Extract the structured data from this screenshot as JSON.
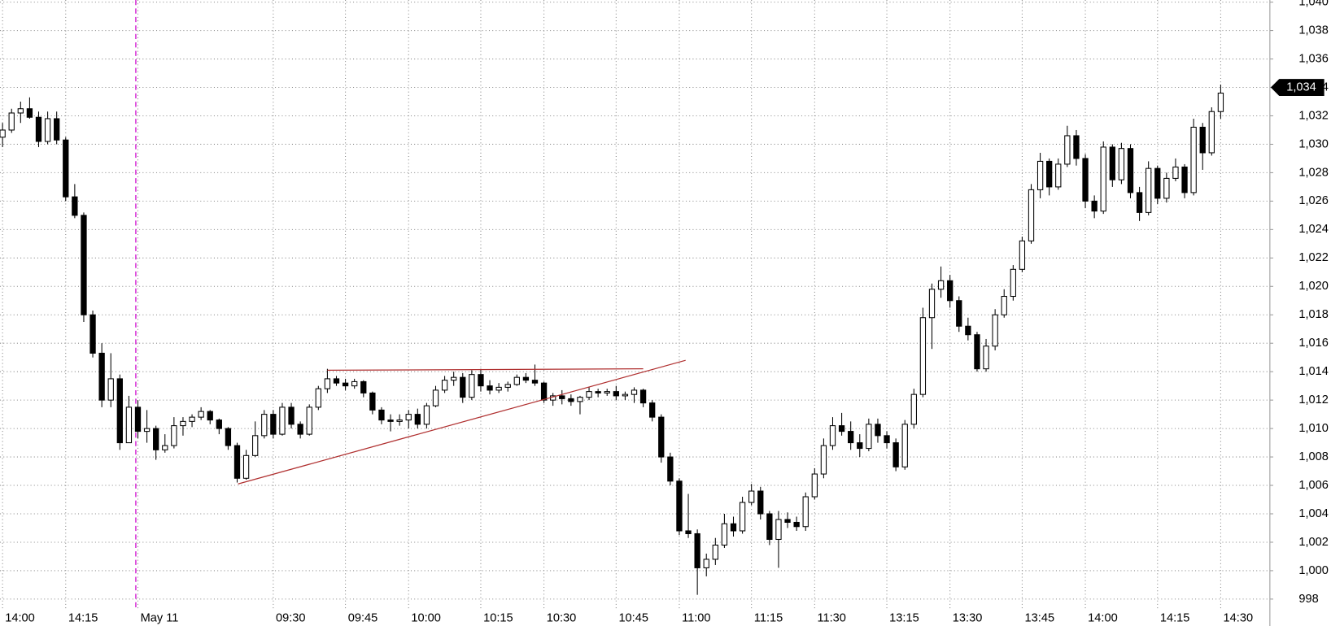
{
  "chart_data": {
    "type": "candlestick",
    "categories": [
      "14:00",
      null,
      null,
      null,
      null,
      null,
      null,
      "14:15",
      null,
      null,
      null,
      null,
      null,
      null,
      null,
      "May 11",
      null,
      null,
      null,
      null,
      null,
      null,
      null,
      null,
      null,
      null,
      null,
      null,
      null,
      null,
      "09:30",
      null,
      null,
      null,
      null,
      null,
      null,
      null,
      "09:45",
      null,
      null,
      null,
      null,
      null,
      null,
      "10:00",
      null,
      null,
      null,
      null,
      null,
      null,
      null,
      "10:15",
      null,
      null,
      null,
      null,
      null,
      null,
      "10:30",
      null,
      null,
      null,
      null,
      null,
      null,
      null,
      "10:45",
      null,
      null,
      null,
      null,
      null,
      null,
      "11:00",
      null,
      null,
      null,
      null,
      null,
      null,
      null,
      "11:15",
      null,
      null,
      null,
      null,
      null,
      null,
      "11:30",
      null,
      null,
      null,
      null,
      null,
      null,
      null,
      "13:15",
      null,
      null,
      null,
      null,
      null,
      null,
      "13:30",
      null,
      null,
      null,
      null,
      null,
      null,
      null,
      "13:45",
      null,
      null,
      null,
      null,
      null,
      null,
      "14:00",
      null,
      null,
      null,
      null,
      null,
      null,
      null,
      "14:15",
      null,
      null,
      null,
      null,
      null,
      null,
      "14:30"
    ],
    "open": [
      1030.5,
      1031,
      1032.2,
      1032.5,
      1031.9,
      1030.2,
      1031.8,
      1030.3,
      1026.3,
      1025,
      1018,
      1015.3,
      1012,
      1013.5,
      1009,
      1011.5,
      1009.8,
      1010,
      1008.5,
      1008.8,
      1010.2,
      1010.5,
      1010.8,
      1011.2,
      1010.6,
      1010,
      1008.8,
      1006.5,
      1008.1,
      1009.5,
      1011,
      1009.6,
      1011.5,
      1010.3,
      1009.6,
      1011.5,
      1012.8,
      1013.5,
      1013.2,
      1013,
      1013.3,
      1012.5,
      1011.3,
      1010.6,
      1010.5,
      1010.6,
      1011,
      1010.3,
      1011.6,
      1012.7,
      1013.4,
      1013.6,
      1012.2,
      1013.8,
      1013,
      1012.7,
      1012.9,
      1013.1,
      1013.6,
      1013.4,
      1013.2,
      1012,
      1012.3,
      1012.1,
      1011.9,
      1012.2,
      1012.6,
      1012.5,
      1012.6,
      1012.3,
      1012.4,
      1012.7,
      1011.8,
      1010.8,
      1008,
      1006.3,
      1002.8,
      1002.6,
      1000.2,
      1000.8,
      1001.8,
      1003.3,
      1002.8,
      1004.8,
      1005.6,
      1004,
      1002.2,
      1003.6,
      1003.4,
      1003.1,
      1005.2,
      1006.8,
      1008.8,
      1010.2,
      1009.8,
      1009,
      1008.6,
      1010.3,
      1009.5,
      1009,
      1007.3,
      1010.3,
      1012.4,
      1017.8,
      1019.8,
      1020.4,
      1019,
      1017.2,
      1016.6,
      1014.2,
      1015.8,
      1018,
      1019.3,
      1021.2,
      1023.2,
      1026.8,
      1028.8,
      1027,
      1028.6,
      1030.6,
      1029,
      1026,
      1025.3,
      1029.8,
      1027.5,
      1029.7,
      1026.6,
      1025.2,
      1028.3,
      1026.2,
      1027.6,
      1028.4,
      1026.6,
      1031.2,
      1029.4,
      1032.3
    ],
    "high": [
      1031.5,
      1032.5,
      1033,
      1033.3,
      1032.3,
      1032.3,
      1032.3,
      1030.5,
      1027.2,
      1025.2,
      1018.3,
      1016,
      1015.3,
      1013.8,
      1012.3,
      1012,
      1011.3,
      1010.2,
      1009.6,
      1010.8,
      1010.8,
      1011,
      1011.5,
      1011.3,
      1010.7,
      1010.1,
      1009,
      1008.5,
      1010.5,
      1011.3,
      1011.3,
      1011.8,
      1011.8,
      1010.5,
      1011.7,
      1013,
      1014.2,
      1013.7,
      1013.5,
      1013.5,
      1013.4,
      1012.6,
      1011.5,
      1011,
      1011,
      1011.3,
      1011.4,
      1011.8,
      1013,
      1013.7,
      1014,
      1013.9,
      1014.1,
      1014.2,
      1013.4,
      1013.2,
      1013.3,
      1013.8,
      1013.9,
      1014.5,
      1013.3,
      1012.5,
      1012.7,
      1012.4,
      1012.3,
      1012.9,
      1012.8,
      1012.8,
      1013,
      1012.6,
      1012.9,
      1012.8,
      1012,
      1011,
      1008.3,
      1006.5,
      1005.4,
      1002.9,
      1001.2,
      1002.3,
      1004,
      1003.8,
      1005.2,
      1006.1,
      1005.9,
      1004.2,
      1004.2,
      1004.1,
      1003.8,
      1005.5,
      1007.2,
      1009.3,
      1010.8,
      1011.1,
      1010.5,
      1009.6,
      1010.7,
      1010.7,
      1009.8,
      1009.3,
      1010.6,
      1012.8,
      1018.5,
      1020.2,
      1021.4,
      1020.8,
      1019.3,
      1017.8,
      1016.8,
      1016.3,
      1018.4,
      1019.8,
      1021.5,
      1023.5,
      1027.2,
      1029.4,
      1029,
      1029,
      1031.3,
      1031,
      1029.3,
      1026.4,
      1030.2,
      1030,
      1030.1,
      1030,
      1027,
      1028.8,
      1028.5,
      1028,
      1029,
      1028.6,
      1031.8,
      1031.5,
      1032.6,
      1034.2
    ],
    "low": [
      1029.8,
      1030.8,
      1031.5,
      1031.8,
      1029.8,
      1030,
      1030,
      1026,
      1024.8,
      1017.5,
      1015,
      1011.5,
      1011.5,
      1008.5,
      1009,
      1009.3,
      1009,
      1007.8,
      1008.3,
      1008.6,
      1009.5,
      1010.1,
      1010.6,
      1010.3,
      1009.6,
      1008.5,
      1006.2,
      1006.4,
      1008,
      1009.3,
      1009.3,
      1009.5,
      1010,
      1009.3,
      1009.5,
      1011.3,
      1012.5,
      1013,
      1012.7,
      1012.8,
      1012.2,
      1011,
      1010.3,
      1009.8,
      1010.2,
      1010,
      1010,
      1010,
      1011.5,
      1012.5,
      1013,
      1011.8,
      1012,
      1012.6,
      1012.4,
      1012.5,
      1012.6,
      1013,
      1013.2,
      1013,
      1011.8,
      1011.6,
      1011.7,
      1011.6,
      1011,
      1012,
      1012.2,
      1012.3,
      1012,
      1012,
      1011.8,
      1011.5,
      1010.5,
      1007.6,
      1006,
      1002.5,
      1002.3,
      998.3,
      999.6,
      1000.4,
      1001.6,
      1002.4,
      1002.6,
      1004.6,
      1003.6,
      1001.8,
      1000.2,
      1003,
      1002.8,
      1002.8,
      1005,
      1006.5,
      1008.5,
      1009.5,
      1008.5,
      1008,
      1008.4,
      1009,
      1008.6,
      1007,
      1007.1,
      1010,
      1012.2,
      1015.6,
      1019.2,
      1018.5,
      1016.8,
      1016.2,
      1014,
      1014,
      1015.5,
      1017.8,
      1019,
      1021,
      1023,
      1026.2,
      1026.4,
      1026.8,
      1028.4,
      1028.5,
      1025.5,
      1024.8,
      1025.1,
      1027,
      1027.2,
      1026.2,
      1024.6,
      1025,
      1025.8,
      1025.9,
      1027.4,
      1026.2,
      1026.4,
      1028.2,
      1029.2,
      1031.8
    ],
    "close": [
      1031,
      1032.2,
      1032.5,
      1031.9,
      1030.2,
      1031.8,
      1030.3,
      1026.3,
      1025,
      1018,
      1015.3,
      1012,
      1013.5,
      1009,
      1011.5,
      1009.8,
      1010,
      1008.5,
      1008.8,
      1010.2,
      1010.5,
      1010.8,
      1011.2,
      1010.6,
      1010,
      1008.8,
      1006.5,
      1008.1,
      1009.5,
      1011,
      1009.6,
      1011.5,
      1010.3,
      1009.6,
      1011.5,
      1012.8,
      1013.5,
      1013.2,
      1013,
      1013.3,
      1012.5,
      1011.3,
      1010.6,
      1010.5,
      1010.6,
      1011,
      1010.3,
      1011.6,
      1012.7,
      1013.4,
      1013.6,
      1012.2,
      1013.8,
      1013,
      1012.7,
      1012.9,
      1013.1,
      1013.6,
      1013.4,
      1013.2,
      1012,
      1012.3,
      1012.1,
      1011.9,
      1012.2,
      1012.6,
      1012.5,
      1012.6,
      1012.3,
      1012.4,
      1012.7,
      1011.8,
      1010.8,
      1008,
      1006.3,
      1002.8,
      1002.6,
      1000.2,
      1000.8,
      1001.8,
      1003.3,
      1002.8,
      1004.8,
      1005.6,
      1004,
      1002.2,
      1003.6,
      1003.4,
      1003.1,
      1005.2,
      1006.8,
      1008.8,
      1010.2,
      1009.8,
      1009,
      1008.6,
      1010.3,
      1009.5,
      1009,
      1007.3,
      1010.3,
      1012.4,
      1017.8,
      1019.8,
      1020.4,
      1019,
      1017.2,
      1016.6,
      1014.2,
      1015.8,
      1018,
      1019.3,
      1021.2,
      1023.2,
      1026.8,
      1028.8,
      1027,
      1028.6,
      1030.6,
      1029,
      1026,
      1025.3,
      1029.8,
      1027.5,
      1029.7,
      1026.6,
      1025.2,
      1028.3,
      1026.2,
      1027.6,
      1028.4,
      1026.6,
      1031.2,
      1029.4,
      1032.3,
      1033.6
    ],
    "up_color": "#ffffff",
    "down_color": "#000000",
    "ylim": [
      997.3,
      1040.15
    ],
    "yticks": [
      998,
      {
        "value": 1000,
        "label": "1,000"
      },
      {
        "value": 1002,
        "label": "1,002"
      },
      {
        "value": 1004,
        "label": "1,004"
      },
      {
        "value": 1006,
        "label": "1,006"
      },
      {
        "value": 1008,
        "label": "1,008"
      },
      {
        "value": 1010,
        "label": "1,010"
      },
      {
        "value": 1012,
        "label": "1,012"
      },
      {
        "value": 1014,
        "label": "1,014"
      },
      {
        "value": 1016,
        "label": "1,016"
      },
      {
        "value": 1018,
        "label": "1,018"
      },
      {
        "value": 1020,
        "label": "1,020"
      },
      {
        "value": 1022,
        "label": "1,022"
      },
      {
        "value": 1024,
        "label": "1,024"
      },
      {
        "value": 1026,
        "label": "1,026"
      },
      {
        "value": 1028,
        "label": "1,028"
      },
      {
        "value": 1030,
        "label": "1,030"
      },
      {
        "value": 1032,
        "label": "1,032"
      },
      {
        "value": 1034,
        "label": "1,034"
      },
      {
        "value": 1036,
        "label": "1,036"
      },
      {
        "value": 1038,
        "label": "1,038"
      },
      {
        "value": 1040,
        "label": "1,040"
      }
    ],
    "last_price": {
      "value": 1034,
      "label": "1,034"
    },
    "trendlines": [
      {
        "color": "#b03030",
        "x": [
          36,
          71
        ],
        "values": [
          1014.1,
          1014.2
        ]
      },
      {
        "color": "#b03030",
        "x": [
          26.1,
          75.7
        ],
        "values": [
          1006.1,
          1014.8
        ]
      }
    ],
    "grid": true
  }
}
